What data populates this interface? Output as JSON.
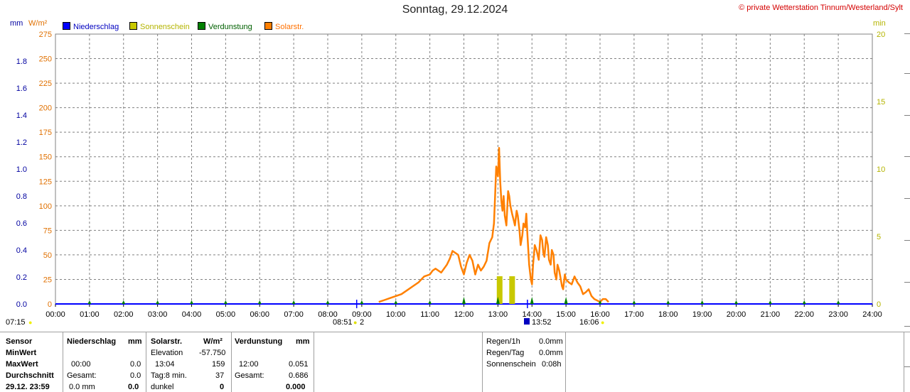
{
  "header": {
    "title": "Sonntag, 29.12.2024",
    "copyright": "© private Wetterstation Tinnum/Westerland/Sylt"
  },
  "legend": [
    {
      "label": "Niederschlag",
      "color": "#0000ff",
      "text_color": "#0000c0"
    },
    {
      "label": "Sonnenschein",
      "color": "#c8c800",
      "text_color": "#b4b400"
    },
    {
      "label": "Verdunstung",
      "color": "#008000",
      "text_color": "#006000"
    },
    {
      "label": "Solarstr.",
      "color": "#ff8000",
      "text_color": "#ff7000"
    }
  ],
  "units": {
    "left1": "mm",
    "left2": "W/m²",
    "right": "min"
  },
  "axis_colors": {
    "mm": "#0000a0",
    "wm2": "#e07000",
    "min": "#b4b400"
  },
  "chart_data": {
    "type": "line",
    "x_label": "",
    "x_ticks": [
      "00:00",
      "01:00",
      "02:00",
      "03:00",
      "04:00",
      "05:00",
      "06:00",
      "07:00",
      "08:00",
      "09:00",
      "10:00",
      "11:00",
      "12:00",
      "13:00",
      "14:00",
      "15:00",
      "16:00",
      "17:00",
      "18:00",
      "19:00",
      "20:00",
      "21:00",
      "22:00",
      "23:00",
      "24:00"
    ],
    "y_left_mm": {
      "range": [
        0,
        2.0
      ],
      "ticks": [
        "0.0",
        "0.2",
        "0.4",
        "0.6",
        "0.8",
        "1.0",
        "1.2",
        "1.4",
        "1.6",
        "1.8"
      ]
    },
    "y_left_wm2": {
      "range": [
        0,
        275
      ],
      "ticks": [
        "0",
        "25",
        "50",
        "75",
        "100",
        "125",
        "150",
        "175",
        "200",
        "225",
        "250",
        "275"
      ]
    },
    "y_right_min": {
      "range": [
        0,
        20
      ],
      "ticks": [
        "0",
        "5",
        "10",
        "15",
        "20"
      ]
    },
    "grid": true,
    "series": [
      {
        "name": "Solarstr.",
        "color": "#ff8000",
        "unit": "W/m²",
        "x": [
          "09:30",
          "09:40",
          "09:50",
          "10:00",
          "10:10",
          "10:20",
          "10:30",
          "10:40",
          "10:50",
          "11:00",
          "11:05",
          "11:10",
          "11:20",
          "11:30",
          "11:35",
          "11:40",
          "11:45",
          "11:50",
          "11:55",
          "12:00",
          "12:05",
          "12:10",
          "12:15",
          "12:20",
          "12:25",
          "12:30",
          "12:35",
          "12:40",
          "12:45",
          "12:50",
          "12:53",
          "12:55",
          "12:57",
          "13:00",
          "13:02",
          "13:04",
          "13:06",
          "13:08",
          "13:10",
          "13:12",
          "13:15",
          "13:18",
          "13:20",
          "13:22",
          "13:25",
          "13:28",
          "13:30",
          "13:33",
          "13:35",
          "13:38",
          "13:40",
          "13:43",
          "13:45",
          "13:48",
          "13:50",
          "13:52",
          "13:55",
          "13:58",
          "14:00",
          "14:02",
          "14:05",
          "14:08",
          "14:10",
          "14:12",
          "14:15",
          "14:18",
          "14:20",
          "14:22",
          "14:25",
          "14:28",
          "14:30",
          "14:33",
          "14:35",
          "14:38",
          "14:40",
          "14:43",
          "14:45",
          "14:48",
          "14:50",
          "14:53",
          "14:55",
          "14:58",
          "15:00",
          "15:05",
          "15:10",
          "15:15",
          "15:20",
          "15:25",
          "15:30",
          "15:35",
          "15:40",
          "15:45",
          "15:50",
          "16:00",
          "16:05",
          "16:10",
          "16:15"
        ],
        "values": [
          2,
          4,
          6,
          8,
          10,
          14,
          18,
          22,
          28,
          30,
          34,
          36,
          32,
          40,
          46,
          54,
          52,
          50,
          38,
          30,
          42,
          50,
          44,
          30,
          40,
          34,
          38,
          44,
          62,
          68,
          82,
          110,
          140,
          130,
          159,
          125,
          105,
          95,
          110,
          90,
          80,
          115,
          110,
          100,
          92,
          85,
          80,
          95,
          90,
          75,
          60,
          70,
          82,
          78,
          92,
          70,
          40,
          25,
          20,
          40,
          60,
          55,
          50,
          45,
          70,
          65,
          52,
          48,
          68,
          60,
          45,
          40,
          55,
          50,
          32,
          25,
          40,
          34,
          28,
          18,
          15,
          30,
          25,
          22,
          20,
          28,
          22,
          18,
          10,
          12,
          15,
          8,
          5,
          2,
          5,
          5,
          2
        ]
      },
      {
        "name": "Sonnenschein",
        "color": "#c8c800",
        "unit": "min",
        "x": [
          "12:58",
          "13:20"
        ],
        "values": [
          1,
          1
        ]
      },
      {
        "name": "Niederschlag",
        "color": "#0000ff",
        "unit": "mm",
        "x": [],
        "values": []
      },
      {
        "name": "Verdunstung",
        "color": "#008000",
        "unit": "mm",
        "x": [
          "01:00",
          "02:00",
          "03:00",
          "04:00",
          "05:00",
          "06:00",
          "07:00",
          "08:00",
          "09:00",
          "10:00",
          "11:00",
          "12:00",
          "13:00",
          "14:00",
          "15:00",
          "16:00",
          "17:00",
          "18:00",
          "19:00",
          "20:00",
          "21:00",
          "22:00",
          "23:00"
        ],
        "values": [
          0.005,
          0.005,
          0.005,
          0.005,
          0.005,
          0.005,
          0.005,
          0.005,
          0.005,
          0.005,
          0.005,
          0.051,
          0.051,
          0.051,
          0.04,
          0.02,
          0.005,
          0.005,
          0.005,
          0.005,
          0.005,
          0.005,
          0.005
        ]
      }
    ]
  },
  "markers": {
    "sunrise": "07:15",
    "sun_start": "08:51",
    "sun_start_count": "2",
    "sun_end": "13:52",
    "sunset": "16:06"
  },
  "table": {
    "col_sensor": {
      "header": "Sensor",
      "minwert": "MinWert",
      "maxwert": "MaxWert",
      "durchschnitt": "Durchschnitt",
      "date": "29.12. 23:59"
    },
    "col_rain": {
      "header": "Niederschlag",
      "unit": "mm",
      "max_time": "00:00",
      "max_val": "0.0",
      "gesamt_label": "Gesamt:",
      "gesamt_val": "0.0",
      "last_val": "0.0 mm",
      "last_total": "0.0"
    },
    "col_solar": {
      "header": "Solarstr.",
      "unit": "W/m²",
      "elevation_label": "Elevation",
      "elevation_val": "-57.750",
      "max_time": "13:04",
      "max_val": "159",
      "tag_label": "Tag:8 min.",
      "tag_val": "37",
      "dunkel_label": "dunkel",
      "dunkel_val": "0"
    },
    "col_evap": {
      "header": "Verdunstung",
      "unit": "mm",
      "max_time": "12:00",
      "max_val": "0.051",
      "gesamt_label": "Gesamt:",
      "gesamt_val": "0.686",
      "last_val": "0.000"
    },
    "summary": [
      {
        "label": "Regen/1h",
        "value": "0.0mm"
      },
      {
        "label": "Regen/Tag",
        "value": "0.0mm"
      },
      {
        "label": "Sonnenschein",
        "value": "0:08h"
      }
    ]
  }
}
